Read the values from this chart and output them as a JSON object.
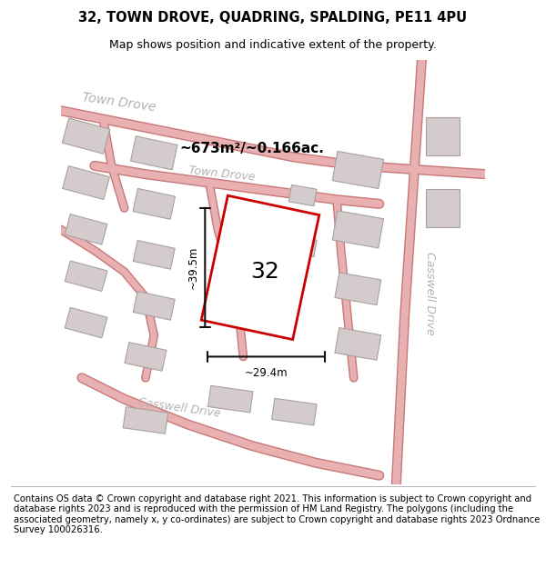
{
  "title": "32, TOWN DROVE, QUADRING, SPALDING, PE11 4PU",
  "subtitle": "Map shows position and indicative extent of the property.",
  "footer": "Contains OS data © Crown copyright and database right 2021. This information is subject to Crown copyright and database rights 2023 and is reproduced with the permission of HM Land Registry. The polygons (including the associated geometry, namely x, y co-ordinates) are subject to Crown copyright and database rights 2023 Ordnance Survey 100026316.",
  "title_fontsize": 10.5,
  "subtitle_fontsize": 9,
  "footer_fontsize": 7.2,
  "area_text": "~673m²/~0.166ac.",
  "width_text": "~29.4m",
  "height_text": "~39.5m",
  "property_number": "32",
  "map_bg": "#eeebeb",
  "road_color": "#e8b0b0",
  "road_edge_color": "#c87878",
  "building_fill": "#d4cccc",
  "building_edge": "#aaa0a0",
  "highlight_color": "#cc0000",
  "street_label_color": "#b8b0b0",
  "dim_color": "#111111",
  "road_linewidth": 6,
  "road_edge_linewidth": 8
}
